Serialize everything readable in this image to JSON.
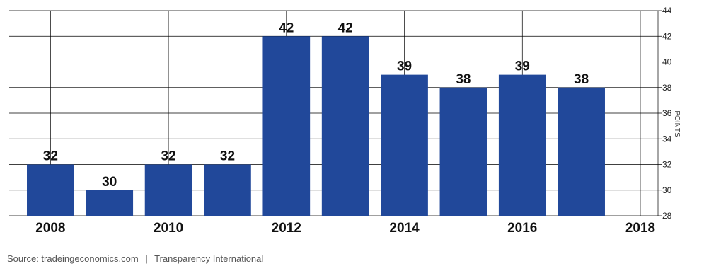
{
  "chart_data": {
    "type": "bar",
    "x": [
      2008,
      2009,
      2010,
      2011,
      2012,
      2013,
      2014,
      2015,
      2016,
      2017
    ],
    "values": [
      32,
      30,
      32,
      32,
      42,
      42,
      39,
      38,
      39,
      38
    ],
    "x_ticks": [
      "2008",
      "2010",
      "2012",
      "2014",
      "2016",
      "2018"
    ],
    "y_ticks": [
      28,
      30,
      32,
      34,
      36,
      38,
      40,
      42,
      44
    ],
    "xlim": [
      2007.3,
      2018.3
    ],
    "ylim": [
      28,
      44
    ],
    "ylabel": "POINTS",
    "y_axis_side": "right",
    "grid": true,
    "bar_color": "#21489a",
    "data_labels": true
  },
  "footer": {
    "source": "Source: tradeingeconomics.com",
    "separator": "|",
    "provider": "Transparency International"
  }
}
